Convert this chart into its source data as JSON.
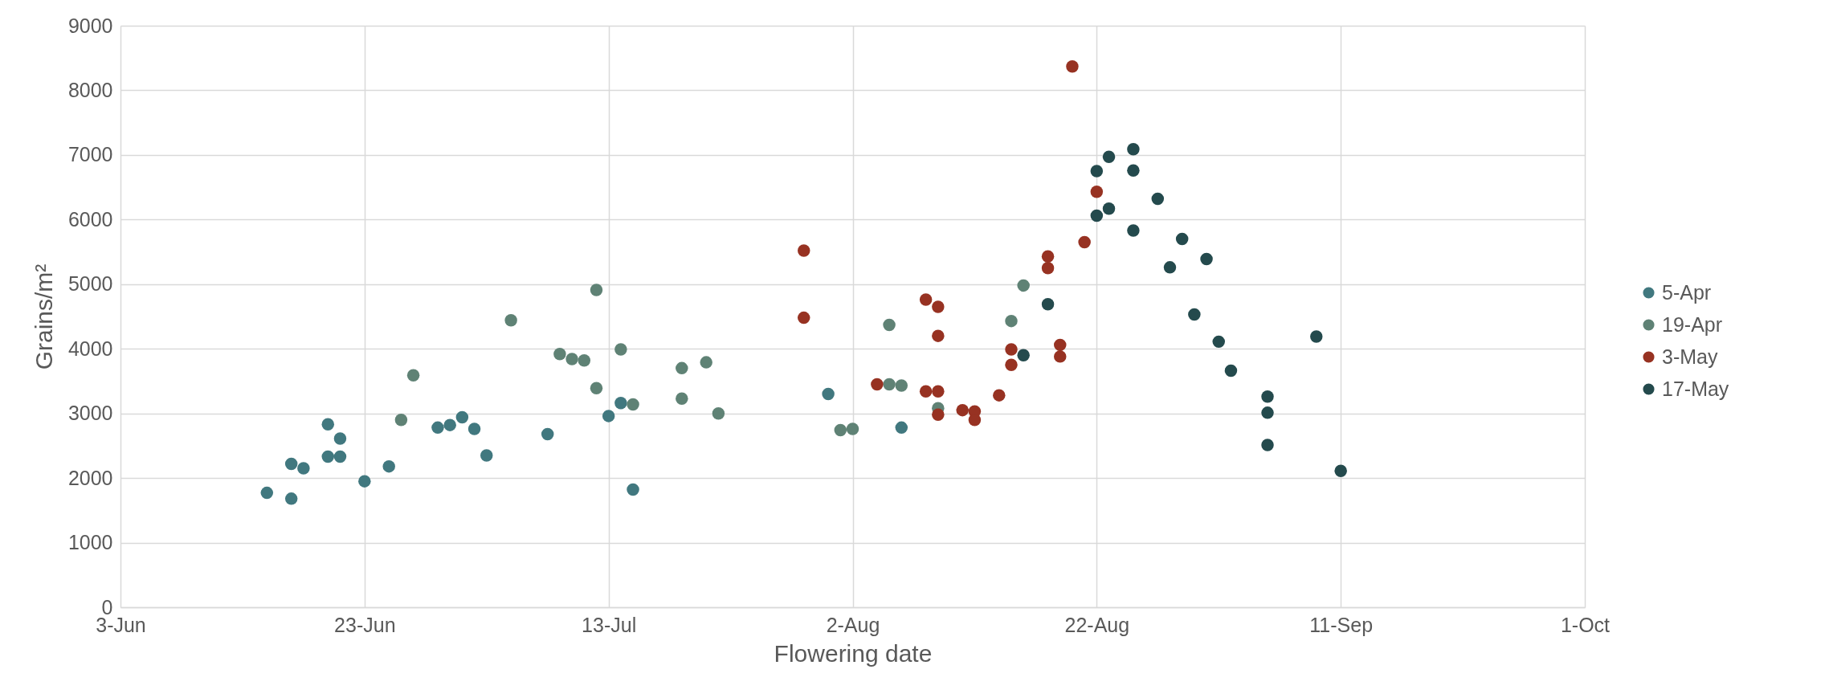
{
  "chart_data": {
    "type": "scatter",
    "xlabel": "Flowering date",
    "ylabel": "Grains/m²",
    "xlim": [
      "--06-03",
      "--10-01"
    ],
    "xticks": [
      {
        "value": "--06-03",
        "label": "3-Jun"
      },
      {
        "value": "--06-23",
        "label": "23-Jun"
      },
      {
        "value": "--07-13",
        "label": "13-Jul"
      },
      {
        "value": "--08-02",
        "label": "2-Aug"
      },
      {
        "value": "--08-22",
        "label": "22-Aug"
      },
      {
        "value": "--09-11",
        "label": "11-Sep"
      },
      {
        "value": "--10-01",
        "label": "1-Oct"
      }
    ],
    "ylim": [
      0,
      9000
    ],
    "yticks": [
      0,
      1000,
      2000,
      3000,
      4000,
      5000,
      6000,
      7000,
      8000,
      9000
    ],
    "grid": true,
    "legend": "right",
    "marker": "circle",
    "series": [
      {
        "name": "5-Apr",
        "color": "#41787f",
        "x": [
          "--06-15",
          "--06-17",
          "--06-17",
          "--06-18",
          "--06-20",
          "--06-21",
          "--06-20",
          "--06-21",
          "--06-23",
          "--06-25",
          "--06-29",
          "--06-30",
          "--07-01",
          "--07-02",
          "--07-03",
          "--07-08",
          "--07-13",
          "--07-14",
          "--07-15",
          "--07-31",
          "--08-06"
        ],
        "values": [
          1770,
          2220,
          1680,
          2150,
          2830,
          2610,
          2330,
          2330,
          1950,
          2180,
          2780,
          2820,
          2940,
          2760,
          2350,
          2680,
          2960,
          3160,
          1820,
          3300,
          2780
        ]
      },
      {
        "name": "19-Apr",
        "color": "#5f8275",
        "x": [
          "--06-26",
          "--06-27",
          "--07-05",
          "--07-09",
          "--07-10",
          "--07-11",
          "--07-12",
          "--07-12",
          "--07-14",
          "--07-15",
          "--07-19",
          "--07-19",
          "--07-21",
          "--07-22",
          "--08-01",
          "--08-02",
          "--08-05",
          "--08-05",
          "--08-06",
          "--08-09",
          "--08-15",
          "--08-16"
        ],
        "values": [
          2900,
          3590,
          4440,
          3920,
          3840,
          3820,
          3390,
          4910,
          3990,
          3140,
          3700,
          3230,
          3790,
          3000,
          2740,
          2760,
          4370,
          3450,
          3430,
          3080,
          4430,
          4980
        ]
      },
      {
        "name": "3-May",
        "color": "#973222",
        "x": [
          "--07-29",
          "--07-29",
          "--08-04",
          "--08-08",
          "--08-08",
          "--08-09",
          "--08-09",
          "--08-09",
          "--08-09",
          "--08-11",
          "--08-12",
          "--08-12",
          "--08-14",
          "--08-15",
          "--08-15",
          "--08-18",
          "--08-18",
          "--08-19",
          "--08-19",
          "--08-20",
          "--08-21",
          "--08-22"
        ],
        "values": [
          5520,
          4480,
          3450,
          4760,
          3340,
          4650,
          4200,
          3340,
          2980,
          3050,
          3030,
          2900,
          3280,
          3990,
          3750,
          5430,
          5250,
          4060,
          3880,
          8370,
          5650,
          6430
        ]
      },
      {
        "name": "17-May",
        "color": "#244a4d",
        "x": [
          "--08-16",
          "--08-18",
          "--08-22",
          "--08-22",
          "--08-23",
          "--08-23",
          "--08-25",
          "--08-25",
          "--08-25",
          "--08-27",
          "--08-28",
          "--08-29",
          "--08-30",
          "--08-31",
          "--09-01",
          "--09-02",
          "--09-05",
          "--09-05",
          "--09-05",
          "--09-09",
          "--09-11"
        ],
        "values": [
          3900,
          4690,
          6750,
          6060,
          6170,
          6970,
          7090,
          6760,
          5830,
          6320,
          5260,
          5700,
          4530,
          5390,
          4110,
          3660,
          3260,
          2510,
          3010,
          4190,
          2110
        ]
      }
    ]
  }
}
